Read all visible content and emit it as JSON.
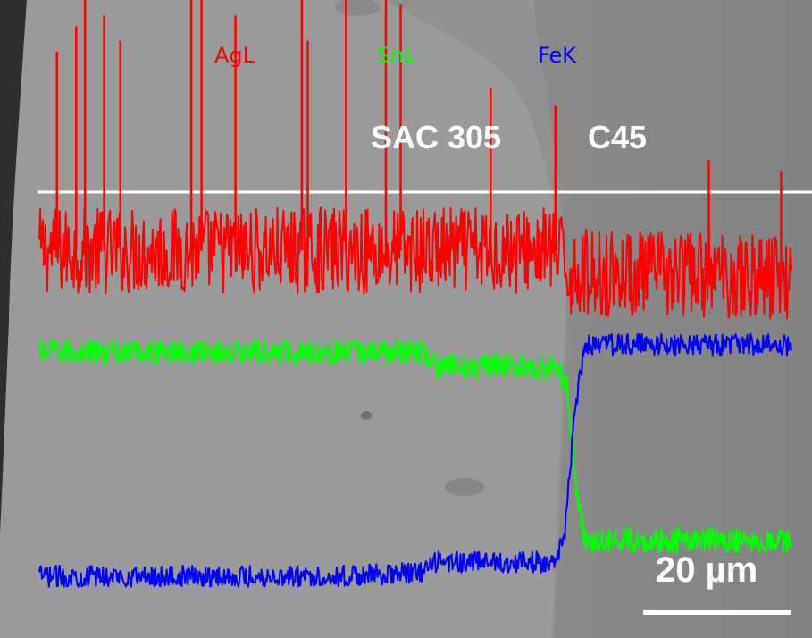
{
  "chart_data": {
    "type": "line",
    "title": "",
    "xlabel": "",
    "ylabel": "",
    "x_unit": "µm",
    "x_range": [
      0,
      51
    ],
    "region_labels": [
      {
        "text": "SAC 305"
      },
      {
        "text": "C45"
      }
    ],
    "interface_x_um": 36,
    "scale_bar": {
      "label": "20 µm",
      "length_um": 20
    },
    "grid": false,
    "legend_placement": "top",
    "series": [
      {
        "name": "AgL",
        "color": "#ff0000",
        "profile": [
          [
            0,
            0.9
          ],
          [
            35,
            0.9
          ],
          [
            36,
            0.84
          ],
          [
            51,
            0.83
          ]
        ],
        "noise": 0.12,
        "spikes": [
          {
            "x": 1.2,
            "value": 1.45
          },
          {
            "x": 2.5,
            "value": 1.52
          },
          {
            "x": 3.1,
            "value": 1.75
          },
          {
            "x": 4.4,
            "value": 1.55
          },
          {
            "x": 5.5,
            "value": 1.48
          },
          {
            "x": 10.3,
            "value": 1.6
          },
          {
            "x": 11.0,
            "value": 1.65
          },
          {
            "x": 13.3,
            "value": 1.55
          },
          {
            "x": 17.8,
            "value": 1.7
          },
          {
            "x": 18.2,
            "value": 1.48
          },
          {
            "x": 20.8,
            "value": 1.82
          },
          {
            "x": 23.5,
            "value": 1.98
          },
          {
            "x": 24.5,
            "value": 1.58
          },
          {
            "x": 30.6,
            "value": 1.35
          },
          {
            "x": 35.0,
            "value": 1.3
          },
          {
            "x": 45.4,
            "value": 1.15
          },
          {
            "x": 50.3,
            "value": 1.12
          }
        ]
      },
      {
        "name": "SnL",
        "color": "#00ff00",
        "profile": [
          [
            0,
            0.62
          ],
          [
            26,
            0.62
          ],
          [
            27,
            0.58
          ],
          [
            35,
            0.58
          ],
          [
            35.8,
            0.52
          ],
          [
            36.5,
            0.22
          ],
          [
            37,
            0.1
          ],
          [
            51,
            0.1
          ]
        ],
        "noise": 0.035,
        "spikes": []
      },
      {
        "name": "FeK",
        "color": "#0000ff",
        "profile": [
          [
            0,
            0.0
          ],
          [
            20,
            0.0
          ],
          [
            26,
            0.01
          ],
          [
            27,
            0.04
          ],
          [
            35,
            0.04
          ],
          [
            35.6,
            0.1
          ],
          [
            36.3,
            0.45
          ],
          [
            37,
            0.64
          ],
          [
            51,
            0.64
          ]
        ],
        "noise": 0.03,
        "spikes": []
      }
    ]
  }
}
